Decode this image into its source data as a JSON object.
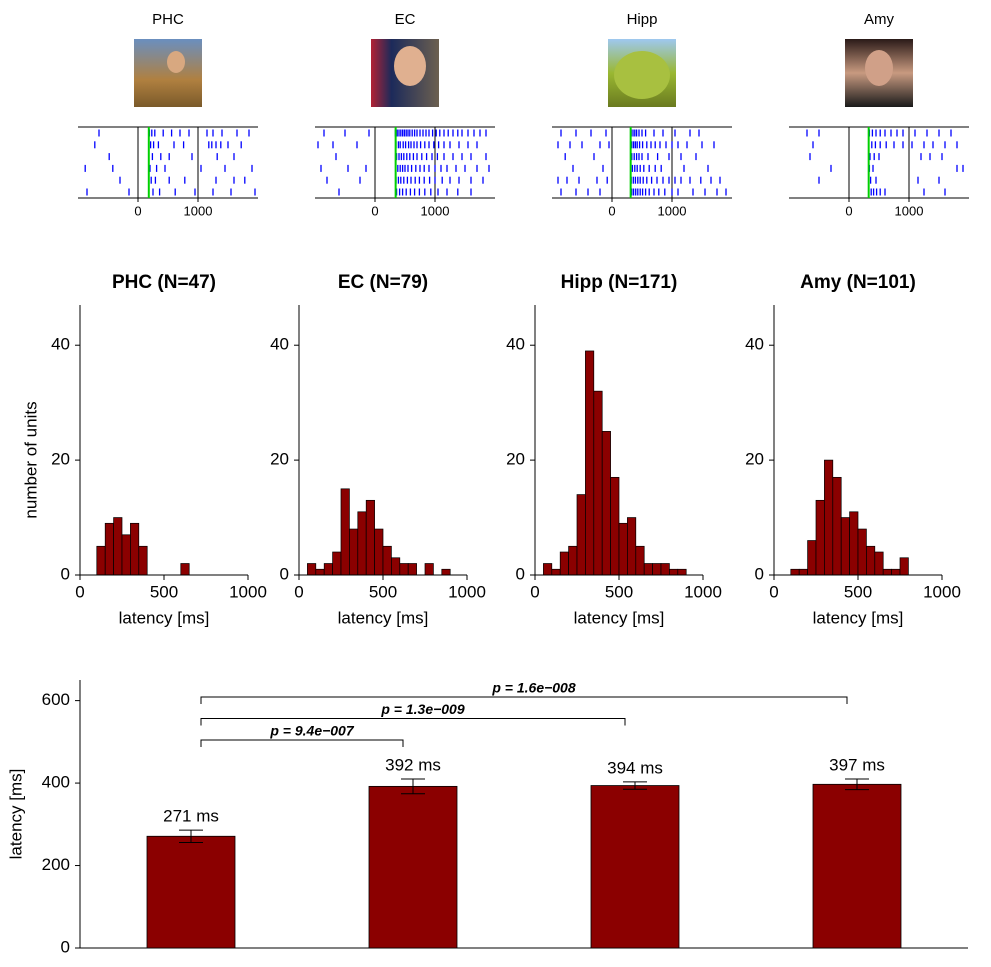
{
  "chart_data": [
    {
      "type": "raster",
      "title": "PHC",
      "xlim": [
        -1000,
        2000
      ],
      "xticks": [
        0,
        1000
      ],
      "onset": 180,
      "color": "#0000ff",
      "onset_color": "#00d000",
      "trials": [
        [
          -650,
          190,
          230,
          280,
          420,
          560,
          700,
          850,
          1150,
          1250,
          1400,
          1650,
          1850
        ],
        [
          -720,
          210,
          260,
          340,
          600,
          760,
          1180,
          1230,
          1300,
          1380,
          1500,
          1720
        ],
        [
          -480,
          240,
          380,
          520,
          900,
          1320,
          1600
        ],
        [
          -880,
          -420,
          200,
          310,
          450,
          1050,
          1450,
          1900
        ],
        [
          -300,
          220,
          290,
          520,
          780,
          1300,
          1600,
          1780
        ],
        [
          -850,
          -150,
          250,
          360,
          620,
          950,
          1250,
          1550,
          1950
        ]
      ]
    },
    {
      "type": "raster",
      "title": "EC",
      "xlim": [
        -1000,
        2000
      ],
      "xticks": [
        0,
        1000
      ],
      "onset": 344,
      "color": "#0000ff",
      "onset_color": "#00d000",
      "trials": [
        [
          -850,
          -500,
          -100,
          340,
          370,
          400,
          430,
          460,
          490,
          520,
          550,
          580,
          620,
          660,
          700,
          750,
          800,
          850,
          900,
          960,
          1020,
          1080,
          1150,
          1220,
          1300,
          1380,
          1450,
          1550,
          1650,
          1750,
          1850
        ],
        [
          -950,
          -700,
          -300,
          350,
          390,
          420,
          470,
          510,
          560,
          600,
          650,
          700,
          760,
          830,
          900,
          980,
          1060,
          1150,
          1250,
          1400,
          1550,
          1700
        ],
        [
          -650,
          360,
          400,
          440,
          480,
          530,
          580,
          640,
          700,
          780,
          860,
          950,
          1040,
          1150,
          1300,
          1450,
          1600,
          1850
        ],
        [
          -900,
          -450,
          -150,
          345,
          380,
          420,
          460,
          500,
          550,
          610,
          680,
          750,
          820,
          900,
          1000,
          1100,
          1200,
          1350,
          1500,
          1700,
          1900
        ],
        [
          -800,
          -250,
          350,
          390,
          430,
          480,
          540,
          600,
          670,
          740,
          820,
          910,
          1000,
          1120,
          1250,
          1400,
          1600,
          1800
        ],
        [
          -600,
          360,
          410,
          460,
          520,
          590,
          660,
          740,
          830,
          930,
          1050,
          1200,
          1380,
          1600
        ]
      ]
    },
    {
      "type": "raster",
      "title": "Hipp",
      "xlim": [
        -1000,
        2000
      ],
      "xticks": [
        0,
        1000
      ],
      "onset": 311,
      "color": "#0000ff",
      "onset_color": "#00d000",
      "trials": [
        [
          -850,
          -600,
          -350,
          -100,
          320,
          350,
          380,
          410,
          450,
          500,
          560,
          700,
          850,
          1050,
          1300,
          1450
        ],
        [
          -900,
          -700,
          -500,
          -200,
          -50,
          330,
          360,
          390,
          420,
          460,
          510,
          580,
          650,
          720,
          800,
          900,
          1000,
          1100,
          1250,
          1500,
          1700
        ],
        [
          -780,
          -300,
          330,
          370,
          410,
          450,
          500,
          600,
          760,
          950,
          1150,
          1400
        ],
        [
          -650,
          -150,
          340,
          380,
          420,
          470,
          530,
          620,
          720,
          820,
          1200,
          1600
        ],
        [
          -900,
          -750,
          -550,
          -250,
          -80,
          320,
          355,
          390,
          430,
          470,
          520,
          580,
          660,
          750,
          850,
          950,
          1050,
          1150,
          1300,
          1480,
          1650,
          1800
        ],
        [
          -850,
          -600,
          -400,
          -200,
          330,
          360,
          395,
          430,
          470,
          510,
          560,
          620,
          700,
          780,
          880,
          1000,
          1100,
          1350,
          1550,
          1750,
          1900
        ]
      ]
    },
    {
      "type": "raster",
      "title": "Amy",
      "xlim": [
        -1000,
        2000
      ],
      "xticks": [
        0,
        1000
      ],
      "onset": 328,
      "color": "#0000ff",
      "onset_color": "#00d000",
      "trials": [
        [
          -700,
          -500,
          340,
          390,
          450,
          520,
          600,
          700,
          800,
          900,
          1100,
          1300,
          1500,
          1700
        ],
        [
          -600,
          330,
          380,
          440,
          520,
          620,
          750,
          900,
          1050,
          1250,
          1400,
          1600,
          1800
        ],
        [
          -650,
          350,
          420,
          500,
          1200,
          1350,
          1550
        ],
        [
          -300,
          340,
          400,
          1800,
          1900
        ],
        [
          -500,
          360,
          450,
          1150,
          1500
        ],
        [
          330,
          370,
          410,
          460,
          520,
          600,
          1250,
          1600
        ]
      ]
    },
    {
      "type": "histogram",
      "title": "PHC (N=47)",
      "x_label": "latency [ms]",
      "y_label": "number of units",
      "color": "#8b0000",
      "bins": [
        0,
        50,
        100,
        150,
        200,
        250,
        300,
        350,
        400,
        450,
        500,
        550,
        600,
        650,
        700,
        750,
        800,
        850,
        900,
        950,
        1000
      ],
      "values": [
        0,
        0,
        5,
        9,
        10,
        7,
        9,
        5,
        0,
        0,
        0,
        0,
        2,
        0,
        0,
        0,
        0,
        0,
        0,
        0
      ],
      "xlim": [
        0,
        1000
      ],
      "xticks": [
        0,
        500,
        1000
      ],
      "ylim": [
        0,
        47
      ],
      "yticks": [
        0,
        20,
        40
      ]
    },
    {
      "type": "histogram",
      "title": "EC (N=79)",
      "x_label": "latency [ms]",
      "color": "#8b0000",
      "bins": [
        0,
        50,
        100,
        150,
        200,
        250,
        300,
        350,
        400,
        450,
        500,
        550,
        600,
        650,
        700,
        750,
        800,
        850,
        900,
        950,
        1000
      ],
      "values": [
        0,
        2,
        1,
        2,
        4,
        15,
        8,
        11,
        13,
        8,
        5,
        3,
        2,
        2,
        0,
        2,
        0,
        1,
        0,
        0
      ],
      "xlim": [
        0,
        1000
      ],
      "xticks": [
        0,
        500,
        1000
      ],
      "ylim": [
        0,
        47
      ],
      "yticks": [
        0,
        20,
        40
      ]
    },
    {
      "type": "histogram",
      "title": "Hipp (N=171)",
      "x_label": "latency [ms]",
      "color": "#8b0000",
      "bins": [
        0,
        50,
        100,
        150,
        200,
        250,
        300,
        350,
        400,
        450,
        500,
        550,
        600,
        650,
        700,
        750,
        800,
        850,
        900,
        950,
        1000
      ],
      "values": [
        0,
        2,
        1,
        4,
        5,
        14,
        39,
        32,
        25,
        17,
        9,
        10,
        5,
        2,
        2,
        2,
        1,
        1,
        0,
        0
      ],
      "xlim": [
        0,
        1000
      ],
      "xticks": [
        0,
        500,
        1000
      ],
      "ylim": [
        0,
        47
      ],
      "yticks": [
        0,
        20,
        40
      ]
    },
    {
      "type": "histogram",
      "title": "Amy (N=101)",
      "x_label": "latency [ms]",
      "color": "#8b0000",
      "bins": [
        0,
        50,
        100,
        150,
        200,
        250,
        300,
        350,
        400,
        450,
        500,
        550,
        600,
        650,
        700,
        750,
        800,
        850,
        900,
        950,
        1000
      ],
      "values": [
        0,
        0,
        1,
        1,
        6,
        13,
        20,
        17,
        10,
        11,
        8,
        5,
        4,
        1,
        1,
        3,
        0,
        0,
        0,
        0
      ],
      "xlim": [
        0,
        1000
      ],
      "xticks": [
        0,
        500,
        1000
      ],
      "ylim": [
        0,
        47
      ],
      "yticks": [
        0,
        20,
        40
      ]
    },
    {
      "type": "bar",
      "y_label": "latency [ms]",
      "color": "#8b0000",
      "categories": [
        null,
        null,
        null,
        null
      ],
      "values": [
        271,
        392,
        394,
        397
      ],
      "value_labels": [
        "271 ms",
        "392 ms",
        "394 ms",
        "397 ms"
      ],
      "errors": [
        15,
        18,
        9,
        13
      ],
      "ylim": [
        0,
        650
      ],
      "yticks": [
        0,
        200,
        400,
        600
      ],
      "annotations": [
        "p = 9.4e−007",
        "p = 1.3e−009",
        "p = 1.6e−008"
      ]
    }
  ]
}
